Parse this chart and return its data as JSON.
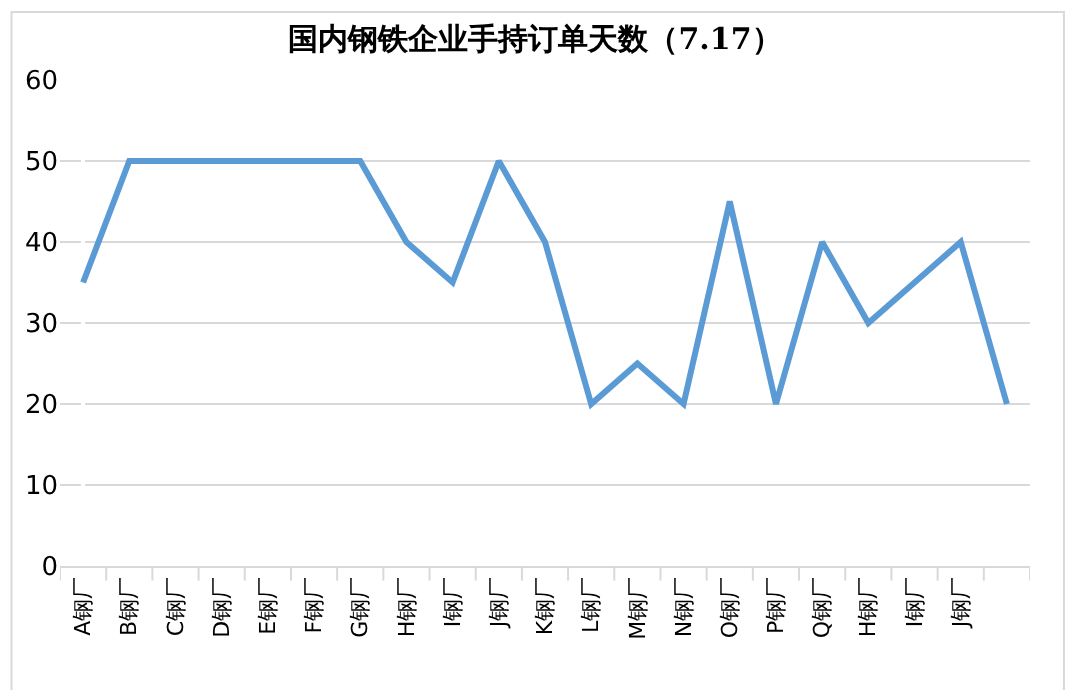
{
  "chart_data": {
    "type": "line",
    "title": "国内钢铁企业手持订单天数（7.17）",
    "categories": [
      "A钢厂",
      "B钢厂",
      "C钢厂",
      "D钢厂",
      "E钢厂",
      "F钢厂",
      "G钢厂",
      "H钢厂",
      "I钢厂",
      "J钢厂",
      "K钢厂",
      "L钢厂",
      "M钢厂",
      "N钢厂",
      "O钢厂",
      "P钢厂",
      "Q钢厂",
      "H钢厂",
      "I钢厂",
      "J钢厂",
      null
    ],
    "series": [
      {
        "color": "#5b9bd5",
        "values": [
          35,
          50,
          50,
          50,
          50,
          50,
          50,
          40,
          35,
          50,
          40,
          20,
          25,
          20,
          45,
          20,
          40,
          30,
          35,
          40,
          20
        ]
      }
    ],
    "ylim": [
      0,
      60
    ],
    "yticks": [
      0,
      10,
      20,
      30,
      40,
      50,
      60
    ],
    "grid": "y",
    "legend": false,
    "marker": "none",
    "line_style": "solid"
  }
}
